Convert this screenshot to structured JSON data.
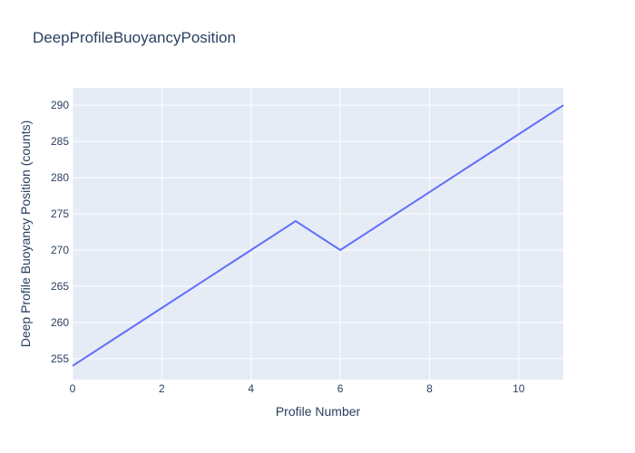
{
  "chart_data": {
    "type": "line",
    "title": "DeepProfileBuoyancyPosition",
    "xlabel": "Profile Number",
    "ylabel": "Deep Profile Buoyancy Position (counts)",
    "x": [
      0,
      1,
      2,
      3,
      4,
      5,
      6,
      7,
      8,
      9,
      10,
      11
    ],
    "y": [
      254,
      258,
      262,
      266,
      270,
      274,
      270,
      274,
      278,
      282,
      286,
      290
    ],
    "xlim": [
      0,
      11
    ],
    "ylim": [
      252.1,
      292.4
    ],
    "xticks": [
      0,
      2,
      4,
      6,
      8,
      10
    ],
    "yticks": [
      255,
      260,
      265,
      270,
      275,
      280,
      285,
      290
    ],
    "grid": true,
    "legend_visible": false,
    "line_width": 2,
    "colors": {
      "line": "#636efa",
      "plot_background": "#e5ecf6",
      "gridline": "#ffffff",
      "text": "#2a3f5f",
      "paper_background": "#ffffff"
    }
  }
}
